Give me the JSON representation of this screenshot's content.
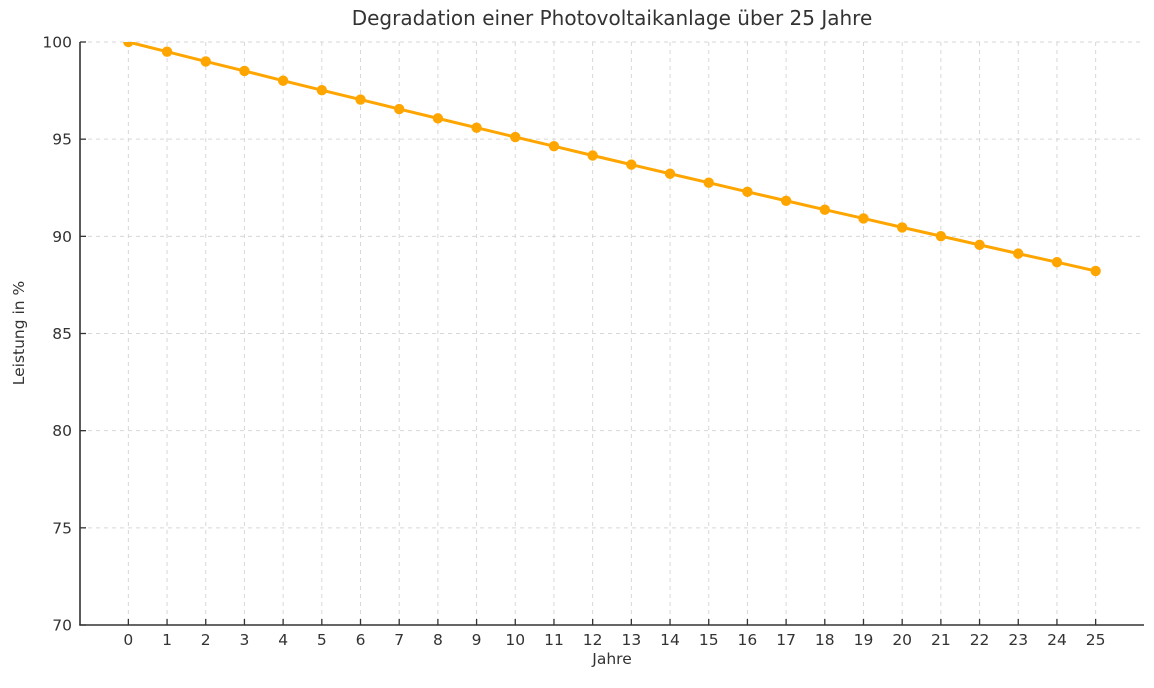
{
  "chart_data": {
    "type": "line",
    "title": "Degradation einer Photovoltaikanlage über 25 Jahre",
    "xlabel": "Jahre",
    "ylabel": "Leistung in %",
    "x": [
      0,
      1,
      2,
      3,
      4,
      5,
      6,
      7,
      8,
      9,
      10,
      11,
      12,
      13,
      14,
      15,
      16,
      17,
      18,
      19,
      20,
      21,
      22,
      23,
      24,
      25
    ],
    "values": [
      100.0,
      99.5,
      99.0,
      98.51,
      98.01,
      97.52,
      97.04,
      96.55,
      96.07,
      95.59,
      95.11,
      94.64,
      94.16,
      93.69,
      93.22,
      92.76,
      92.29,
      91.83,
      91.37,
      90.92,
      90.46,
      90.01,
      89.56,
      89.11,
      88.67,
      88.22
    ],
    "x_ticks": [
      0,
      1,
      2,
      3,
      4,
      5,
      6,
      7,
      8,
      9,
      10,
      11,
      12,
      13,
      14,
      15,
      16,
      17,
      18,
      19,
      20,
      21,
      22,
      23,
      24,
      25
    ],
    "y_ticks": [
      70,
      75,
      80,
      85,
      90,
      95,
      100
    ],
    "xlim": [
      -1.25,
      26.25
    ],
    "ylim": [
      70,
      100
    ],
    "grid": true,
    "legend": false,
    "line_color": "#FFA500",
    "marker": "circle",
    "grid_color": "#d7d7d7",
    "spine_color": "#333333",
    "text_color": "#333333",
    "background": "#ffffff"
  }
}
